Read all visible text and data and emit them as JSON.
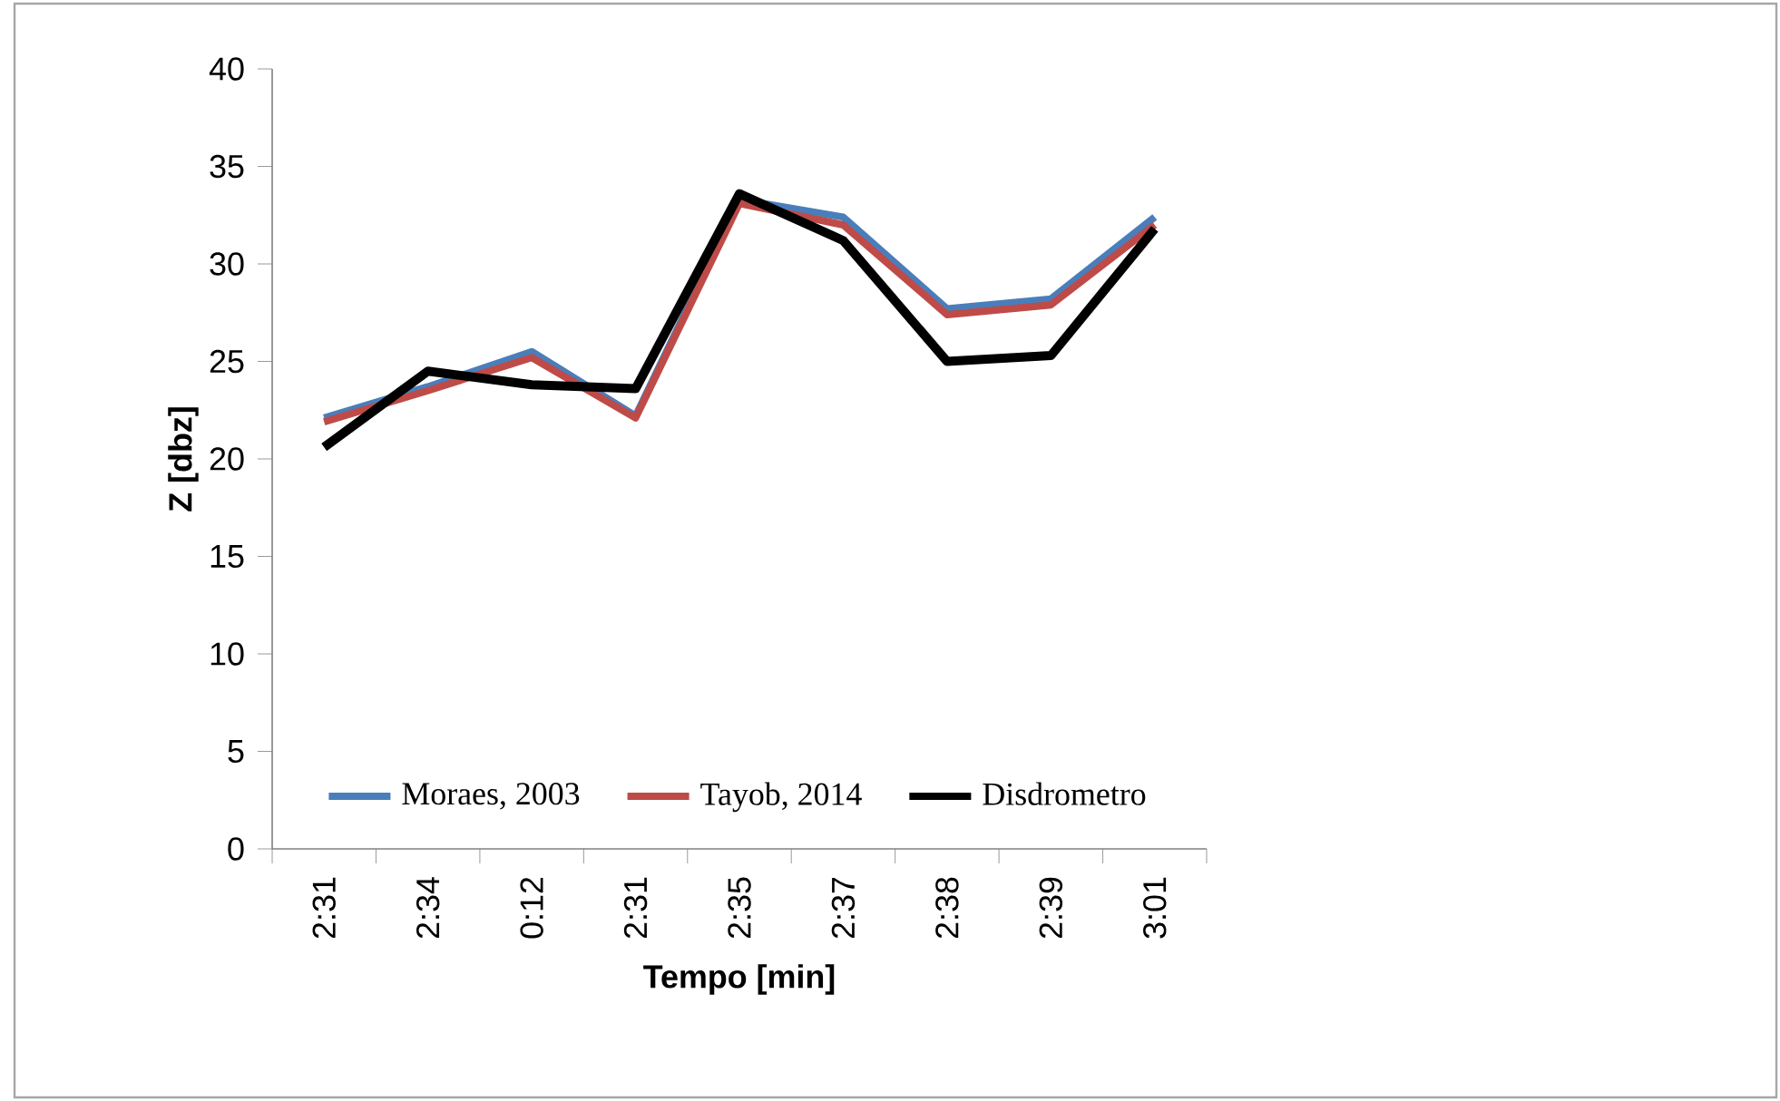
{
  "chart_data": {
    "type": "line",
    "xlabel": "Tempo [min]",
    "ylabel": "Z [dbz]",
    "categories": [
      "2:31",
      "2:34",
      "0:12",
      "2:31",
      "2:35",
      "2:37",
      "2:38",
      "2:39",
      "3:01"
    ],
    "series": [
      {
        "name": "Moraes, 2003",
        "color": "#4a7ebb",
        "values": [
          22.1,
          23.7,
          25.5,
          22.2,
          33.3,
          32.4,
          27.7,
          28.2,
          32.4
        ]
      },
      {
        "name": "Tayob, 2014",
        "color": "#be4b48",
        "values": [
          21.9,
          23.5,
          25.2,
          22.1,
          33.1,
          32.0,
          27.4,
          27.9,
          32.0
        ]
      },
      {
        "name": "Disdrometro",
        "color": "#000000",
        "values": [
          20.6,
          24.5,
          23.8,
          23.6,
          33.6,
          31.2,
          25.0,
          25.3,
          31.8
        ]
      }
    ],
    "ylim": [
      0,
      40
    ],
    "yticks": [
      0,
      5,
      10,
      15,
      20,
      25,
      30,
      35,
      40
    ],
    "legend": "bottom",
    "grid": false,
    "marker": "none",
    "line_style": "solid"
  }
}
